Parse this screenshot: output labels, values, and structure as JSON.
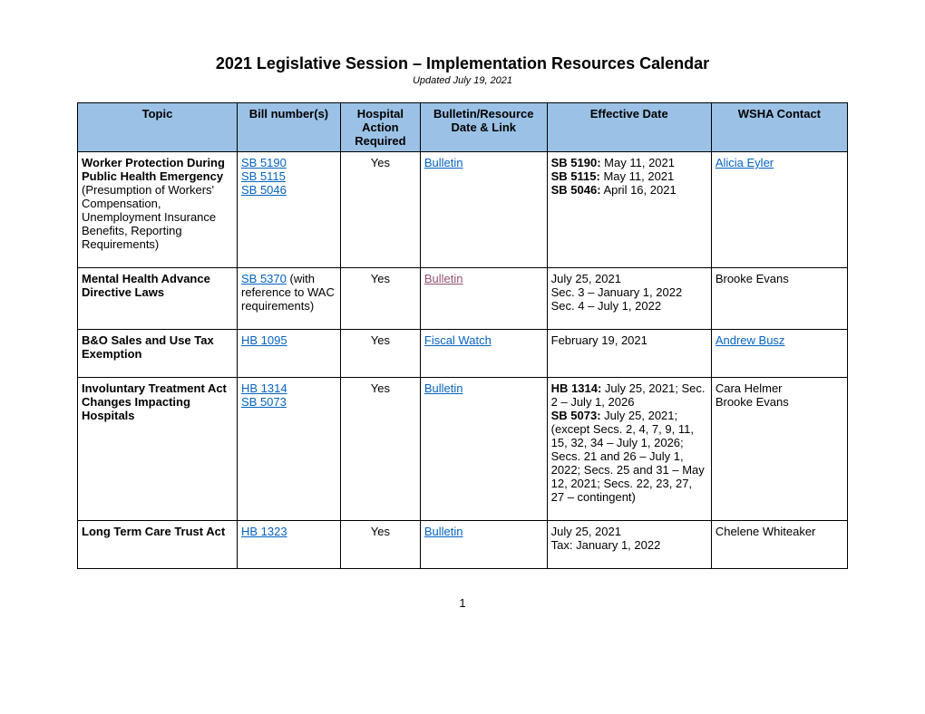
{
  "header": {
    "title": "2021 Legislative Session – Implementation Resources Calendar",
    "subtitle": "Updated July 19, 2021"
  },
  "table": {
    "headers": {
      "topic": "Topic",
      "bill": "Bill number(s)",
      "action": "Hospital Action Required",
      "bulletin": "Bulletin/Resource Date & Link",
      "effective": "Effective Date",
      "contact": "WSHA Contact"
    },
    "rows": [
      {
        "topic_bold": "Worker Protection During Public Health Emergency",
        "topic_rest": " (Presumption of Workers' Compensation, Unemployment Insurance Benefits, Reporting Requirements)",
        "bills": [
          "SB 5190",
          "SB 5115",
          "SB 5046"
        ],
        "action": "Yes",
        "bulletin_text": "Bulletin",
        "bulletin_style": "blue",
        "effective_bold1": "SB 5190:",
        "effective_text1": " May 11, 2021",
        "effective_bold2": "SB 5115:",
        "effective_text2": " May 11, 2021",
        "effective_bold3": "SB 5046:",
        "effective_text3": " April 16, 2021",
        "contact": "Alicia Eyler",
        "contact_link": true
      },
      {
        "topic_bold": "Mental Health Advance Directive Laws",
        "bills": [
          "SB 5370"
        ],
        "bill_suffix": " (with reference to WAC requirements)",
        "action": "Yes",
        "bulletin_text": "Bulletin",
        "bulletin_style": "purple",
        "effective_lines": [
          "July 25, 2021",
          "Sec. 3 – January 1, 2022",
          "Sec. 4 – July 1, 2022"
        ],
        "contact": "Brooke Evans"
      },
      {
        "topic_bold": "B&O Sales and Use Tax Exemption",
        "bills": [
          "HB 1095"
        ],
        "action": "Yes",
        "bulletin_text": "Fiscal Watch",
        "bulletin_style": "blue",
        "effective_lines": [
          "February 19, 2021"
        ],
        "contact": "Andrew Busz",
        "contact_link": true
      },
      {
        "topic_bold": "Involuntary Treatment Act Changes Impacting Hospitals",
        "bills": [
          "HB 1314",
          "SB 5073"
        ],
        "action": "Yes",
        "bulletin_text": "Bulletin",
        "bulletin_style": "blue",
        "effective_bold1": "HB 1314:",
        "effective_text1": " July 25, 2021; Sec. 2 – July 1, 2026",
        "effective_bold2": "SB 5073:",
        "effective_text2": " July 25, 2021; (except Secs. 2, 4, 7, 9, 11, 15, 32, 34 – July 1, 2026; Secs. 21 and 26 – July 1, 2022; Secs. 25 and 31 – May 12, 2021; Secs. 22, 23, 27, 27 – contingent)",
        "contact_lines": [
          "Cara Helmer",
          "Brooke Evans"
        ]
      },
      {
        "topic_bold": "Long Term Care Trust Act",
        "bills": [
          "HB 1323"
        ],
        "action": "Yes",
        "bulletin_text": "Bulletin",
        "bulletin_style": "blue",
        "effective_lines": [
          "July 25, 2021",
          "Tax: January 1, 2022"
        ],
        "contact": "Chelene Whiteaker"
      }
    ]
  },
  "page_number": "1"
}
